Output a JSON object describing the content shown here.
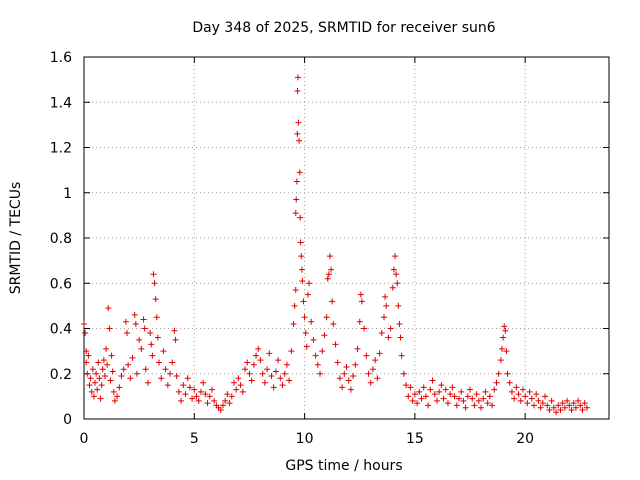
{
  "chart_data": {
    "type": "scatter",
    "title": "Day 348 of 2025, SRMTID for receiver sun6",
    "xlabel": "GPS time / hours",
    "ylabel": "SRMTID / TECUs",
    "xlim": [
      0,
      23.8
    ],
    "ylim": [
      0,
      1.6
    ],
    "x_ticks": [
      0,
      5,
      10,
      15,
      20
    ],
    "x_tick_labels": [
      "0",
      "5",
      "10",
      "15",
      "20"
    ],
    "y_ticks": [
      0,
      0.2,
      0.4,
      0.6,
      0.8,
      1.0,
      1.2,
      1.4,
      1.6
    ],
    "y_tick_labels": [
      "0",
      "0.2",
      "0.4",
      "0.6",
      "0.8",
      "1",
      "1.2",
      "1.4",
      "1.6"
    ],
    "grid": true,
    "marker": "plus",
    "color": "#e00000",
    "series": [
      {
        "name": "SRMTID",
        "points": [
          [
            0.0,
            0.42
          ],
          [
            0.05,
            0.38
          ],
          [
            0.1,
            0.3
          ],
          [
            0.1,
            0.25
          ],
          [
            0.15,
            0.2
          ],
          [
            0.2,
            0.28
          ],
          [
            0.25,
            0.15
          ],
          [
            0.3,
            0.18
          ],
          [
            0.35,
            0.12
          ],
          [
            0.4,
            0.22
          ],
          [
            0.45,
            0.1
          ],
          [
            0.5,
            0.16
          ],
          [
            0.55,
            0.2
          ],
          [
            0.6,
            0.13
          ],
          [
            0.65,
            0.25
          ],
          [
            0.7,
            0.18
          ],
          [
            0.75,
            0.09
          ],
          [
            0.8,
            0.15
          ],
          [
            0.85,
            0.22
          ],
          [
            0.9,
            0.26
          ],
          [
            0.95,
            0.19
          ],
          [
            1.0,
            0.31
          ],
          [
            1.05,
            0.24
          ],
          [
            1.1,
            0.49
          ],
          [
            1.15,
            0.4
          ],
          [
            1.2,
            0.17
          ],
          [
            1.25,
            0.28
          ],
          [
            1.3,
            0.21
          ],
          [
            1.35,
            0.12
          ],
          [
            1.4,
            0.08
          ],
          [
            1.5,
            0.1
          ],
          [
            1.6,
            0.14
          ],
          [
            1.7,
            0.19
          ],
          [
            1.8,
            0.22
          ],
          [
            1.9,
            0.43
          ],
          [
            1.95,
            0.38
          ],
          [
            2.0,
            0.24
          ],
          [
            2.1,
            0.18
          ],
          [
            2.2,
            0.27
          ],
          [
            2.3,
            0.46
          ],
          [
            2.35,
            0.42
          ],
          [
            2.4,
            0.2
          ],
          [
            2.5,
            0.35
          ],
          [
            2.6,
            0.31
          ],
          [
            2.7,
            0.44
          ],
          [
            2.75,
            0.4
          ],
          [
            2.8,
            0.22
          ],
          [
            2.9,
            0.16
          ],
          [
            3.0,
            0.38
          ],
          [
            3.05,
            0.33
          ],
          [
            3.1,
            0.28
          ],
          [
            3.15,
            0.64
          ],
          [
            3.2,
            0.6
          ],
          [
            3.25,
            0.53
          ],
          [
            3.3,
            0.45
          ],
          [
            3.35,
            0.36
          ],
          [
            3.4,
            0.25
          ],
          [
            3.5,
            0.18
          ],
          [
            3.6,
            0.3
          ],
          [
            3.7,
            0.22
          ],
          [
            3.8,
            0.15
          ],
          [
            3.9,
            0.2
          ],
          [
            4.0,
            0.25
          ],
          [
            4.1,
            0.39
          ],
          [
            4.15,
            0.35
          ],
          [
            4.2,
            0.19
          ],
          [
            4.3,
            0.12
          ],
          [
            4.4,
            0.08
          ],
          [
            4.5,
            0.15
          ],
          [
            4.6,
            0.11
          ],
          [
            4.7,
            0.18
          ],
          [
            4.8,
            0.14
          ],
          [
            4.9,
            0.09
          ],
          [
            5.0,
            0.13
          ],
          [
            5.1,
            0.1
          ],
          [
            5.2,
            0.08
          ],
          [
            5.3,
            0.12
          ],
          [
            5.4,
            0.16
          ],
          [
            5.5,
            0.11
          ],
          [
            5.6,
            0.07
          ],
          [
            5.7,
            0.1
          ],
          [
            5.8,
            0.13
          ],
          [
            5.9,
            0.08
          ],
          [
            6.0,
            0.06
          ],
          [
            6.1,
            0.05
          ],
          [
            6.2,
            0.04
          ],
          [
            6.3,
            0.06
          ],
          [
            6.4,
            0.08
          ],
          [
            6.5,
            0.11
          ],
          [
            6.6,
            0.07
          ],
          [
            6.7,
            0.1
          ],
          [
            6.8,
            0.16
          ],
          [
            6.9,
            0.13
          ],
          [
            7.0,
            0.18
          ],
          [
            7.1,
            0.15
          ],
          [
            7.2,
            0.12
          ],
          [
            7.3,
            0.22
          ],
          [
            7.4,
            0.25
          ],
          [
            7.5,
            0.2
          ],
          [
            7.6,
            0.17
          ],
          [
            7.7,
            0.24
          ],
          [
            7.8,
            0.28
          ],
          [
            7.9,
            0.31
          ],
          [
            8.0,
            0.26
          ],
          [
            8.1,
            0.2
          ],
          [
            8.2,
            0.16
          ],
          [
            8.3,
            0.22
          ],
          [
            8.4,
            0.29
          ],
          [
            8.5,
            0.19
          ],
          [
            8.6,
            0.14
          ],
          [
            8.7,
            0.21
          ],
          [
            8.8,
            0.26
          ],
          [
            8.9,
            0.18
          ],
          [
            9.0,
            0.15
          ],
          [
            9.1,
            0.2
          ],
          [
            9.2,
            0.24
          ],
          [
            9.3,
            0.17
          ],
          [
            9.4,
            0.3
          ],
          [
            9.5,
            0.42
          ],
          [
            9.55,
            0.5
          ],
          [
            9.6,
            0.57
          ],
          [
            9.6,
            0.91
          ],
          [
            9.62,
            0.97
          ],
          [
            9.65,
            1.05
          ],
          [
            9.67,
            1.26
          ],
          [
            9.68,
            1.45
          ],
          [
            9.7,
            1.51
          ],
          [
            9.72,
            1.31
          ],
          [
            9.75,
            1.23
          ],
          [
            9.78,
            1.09
          ],
          [
            9.8,
            0.89
          ],
          [
            9.82,
            0.78
          ],
          [
            9.85,
            0.72
          ],
          [
            9.88,
            0.66
          ],
          [
            9.9,
            0.61
          ],
          [
            9.95,
            0.52
          ],
          [
            10.0,
            0.45
          ],
          [
            10.05,
            0.38
          ],
          [
            10.1,
            0.32
          ],
          [
            10.15,
            0.55
          ],
          [
            10.2,
            0.6
          ],
          [
            10.3,
            0.43
          ],
          [
            10.4,
            0.35
          ],
          [
            10.5,
            0.28
          ],
          [
            10.6,
            0.24
          ],
          [
            10.7,
            0.2
          ],
          [
            10.8,
            0.3
          ],
          [
            10.9,
            0.37
          ],
          [
            11.0,
            0.45
          ],
          [
            11.05,
            0.62
          ],
          [
            11.1,
            0.64
          ],
          [
            11.15,
            0.72
          ],
          [
            11.2,
            0.66
          ],
          [
            11.25,
            0.52
          ],
          [
            11.3,
            0.42
          ],
          [
            11.4,
            0.33
          ],
          [
            11.5,
            0.25
          ],
          [
            11.6,
            0.18
          ],
          [
            11.7,
            0.14
          ],
          [
            11.8,
            0.2
          ],
          [
            11.9,
            0.23
          ],
          [
            12.0,
            0.17
          ],
          [
            12.1,
            0.13
          ],
          [
            12.2,
            0.19
          ],
          [
            12.3,
            0.24
          ],
          [
            12.4,
            0.31
          ],
          [
            12.5,
            0.43
          ],
          [
            12.55,
            0.55
          ],
          [
            12.6,
            0.52
          ],
          [
            12.7,
            0.4
          ],
          [
            12.8,
            0.28
          ],
          [
            12.9,
            0.2
          ],
          [
            13.0,
            0.16
          ],
          [
            13.1,
            0.22
          ],
          [
            13.2,
            0.26
          ],
          [
            13.3,
            0.18
          ],
          [
            13.4,
            0.29
          ],
          [
            13.5,
            0.38
          ],
          [
            13.6,
            0.45
          ],
          [
            13.65,
            0.54
          ],
          [
            13.7,
            0.5
          ],
          [
            13.8,
            0.36
          ],
          [
            13.9,
            0.4
          ],
          [
            14.0,
            0.58
          ],
          [
            14.05,
            0.66
          ],
          [
            14.1,
            0.72
          ],
          [
            14.15,
            0.64
          ],
          [
            14.2,
            0.6
          ],
          [
            14.25,
            0.5
          ],
          [
            14.3,
            0.42
          ],
          [
            14.35,
            0.36
          ],
          [
            14.4,
            0.28
          ],
          [
            14.5,
            0.2
          ],
          [
            14.6,
            0.15
          ],
          [
            14.7,
            0.1
          ],
          [
            14.8,
            0.14
          ],
          [
            14.9,
            0.08
          ],
          [
            15.0,
            0.11
          ],
          [
            15.1,
            0.07
          ],
          [
            15.2,
            0.12
          ],
          [
            15.3,
            0.09
          ],
          [
            15.4,
            0.14
          ],
          [
            15.5,
            0.1
          ],
          [
            15.6,
            0.06
          ],
          [
            15.7,
            0.13
          ],
          [
            15.8,
            0.17
          ],
          [
            15.9,
            0.11
          ],
          [
            16.0,
            0.08
          ],
          [
            16.1,
            0.12
          ],
          [
            16.2,
            0.15
          ],
          [
            16.3,
            0.09
          ],
          [
            16.4,
            0.13
          ],
          [
            16.5,
            0.07
          ],
          [
            16.6,
            0.11
          ],
          [
            16.7,
            0.14
          ],
          [
            16.8,
            0.1
          ],
          [
            16.9,
            0.06
          ],
          [
            17.0,
            0.09
          ],
          [
            17.1,
            0.12
          ],
          [
            17.2,
            0.08
          ],
          [
            17.3,
            0.05
          ],
          [
            17.4,
            0.1
          ],
          [
            17.5,
            0.13
          ],
          [
            17.6,
            0.09
          ],
          [
            17.7,
            0.06
          ],
          [
            17.8,
            0.11
          ],
          [
            17.9,
            0.08
          ],
          [
            18.0,
            0.05
          ],
          [
            18.1,
            0.09
          ],
          [
            18.2,
            0.12
          ],
          [
            18.3,
            0.07
          ],
          [
            18.4,
            0.1
          ],
          [
            18.5,
            0.06
          ],
          [
            18.6,
            0.13
          ],
          [
            18.7,
            0.16
          ],
          [
            18.8,
            0.2
          ],
          [
            18.9,
            0.26
          ],
          [
            18.95,
            0.31
          ],
          [
            19.0,
            0.36
          ],
          [
            19.05,
            0.41
          ],
          [
            19.1,
            0.39
          ],
          [
            19.15,
            0.3
          ],
          [
            19.2,
            0.2
          ],
          [
            19.3,
            0.16
          ],
          [
            19.4,
            0.12
          ],
          [
            19.5,
            0.09
          ],
          [
            19.6,
            0.14
          ],
          [
            19.7,
            0.11
          ],
          [
            19.8,
            0.08
          ],
          [
            19.9,
            0.13
          ],
          [
            20.0,
            0.1
          ],
          [
            20.1,
            0.07
          ],
          [
            20.2,
            0.12
          ],
          [
            20.3,
            0.09
          ],
          [
            20.4,
            0.06
          ],
          [
            20.5,
            0.11
          ],
          [
            20.6,
            0.08
          ],
          [
            20.7,
            0.05
          ],
          [
            20.8,
            0.07
          ],
          [
            20.9,
            0.1
          ],
          [
            21.0,
            0.06
          ],
          [
            21.1,
            0.04
          ],
          [
            21.2,
            0.08
          ],
          [
            21.3,
            0.05
          ],
          [
            21.4,
            0.03
          ],
          [
            21.5,
            0.06
          ],
          [
            21.6,
            0.04
          ],
          [
            21.7,
            0.07
          ],
          [
            21.8,
            0.05
          ],
          [
            21.9,
            0.08
          ],
          [
            22.0,
            0.06
          ],
          [
            22.1,
            0.04
          ],
          [
            22.2,
            0.07
          ],
          [
            22.3,
            0.05
          ],
          [
            22.4,
            0.08
          ],
          [
            22.5,
            0.06
          ],
          [
            22.6,
            0.04
          ],
          [
            22.7,
            0.07
          ],
          [
            22.8,
            0.05
          ]
        ]
      }
    ]
  }
}
